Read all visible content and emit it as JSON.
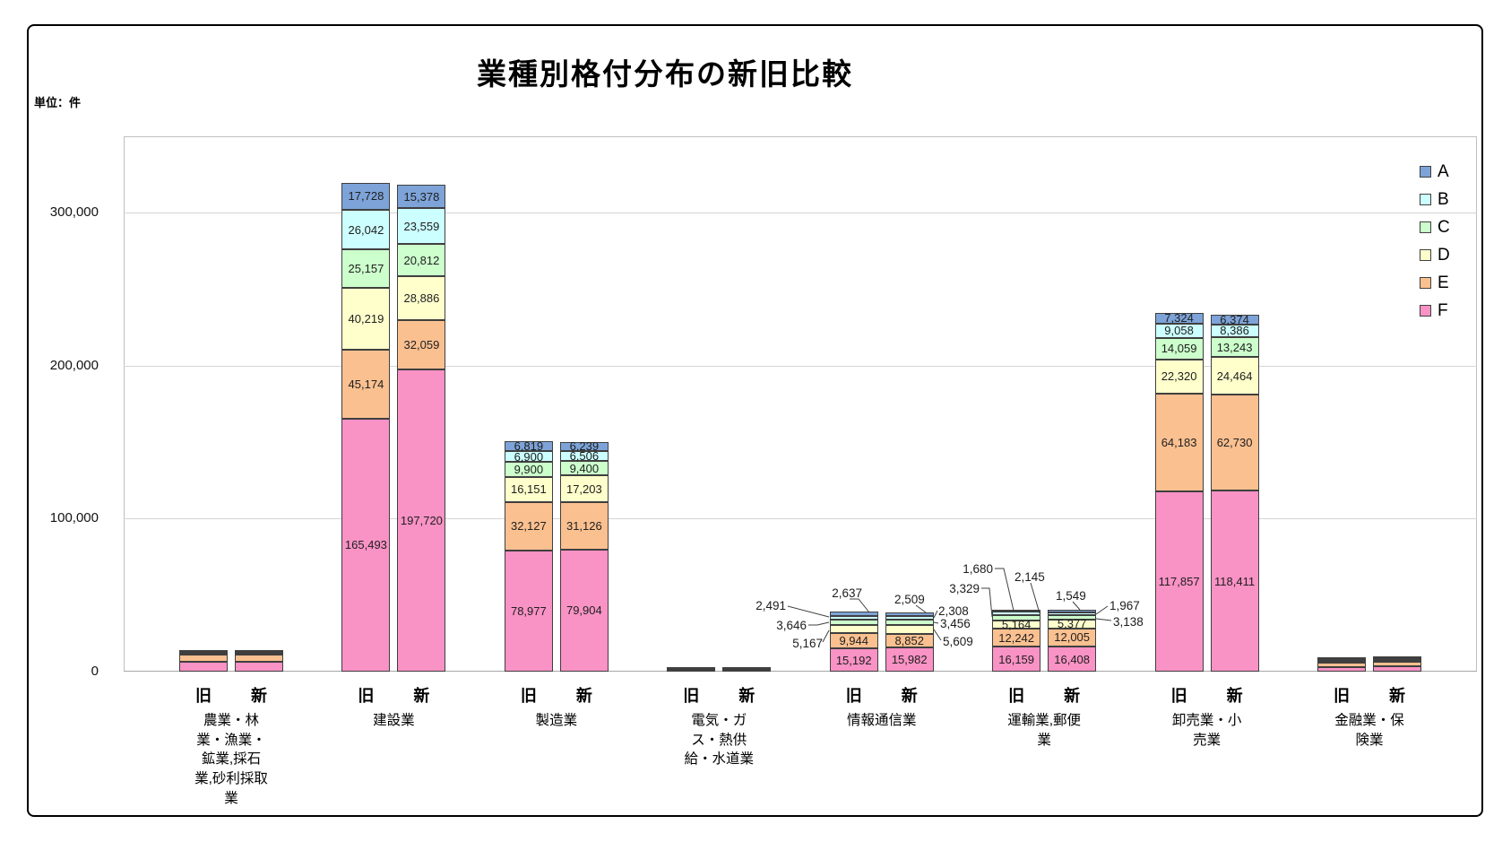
{
  "chart_data": {
    "type": "bar",
    "subtype": "stacked-column-pairs",
    "title": "業種別格付分布の新旧比較",
    "unit_label": "単位：件",
    "legend_position": "top-right-inside",
    "grid": true,
    "y_axis": {
      "ticks": [
        0,
        100000,
        200000,
        300000
      ],
      "tick_labels": [
        "0",
        "100,000",
        "200,000",
        "300,000"
      ],
      "max": 350000
    },
    "bar_labels": [
      "旧",
      "新"
    ],
    "series": [
      {
        "name": "A",
        "color": "#7DA3D8"
      },
      {
        "name": "B",
        "color": "#CCFFFF"
      },
      {
        "name": "C",
        "color": "#CCFFCC"
      },
      {
        "name": "D",
        "color": "#FFFFCC"
      },
      {
        "name": "E",
        "color": "#FAC090"
      },
      {
        "name": "F",
        "color": "#F992C5"
      }
    ],
    "groups": [
      {
        "category": "農業・林業・漁業・鉱業,採石業,砂利採取業",
        "values_estimated": true,
        "old": [
          500,
          600,
          800,
          1300,
          4500,
          6400
        ],
        "new": [
          450,
          550,
          750,
          1400,
          4600,
          6350
        ],
        "old_labels": [
          "",
          "",
          "",
          "",
          "",
          ""
        ],
        "new_labels": [
          "",
          "",
          "",
          "",
          "",
          ""
        ],
        "old_label_mode": [
          "none",
          "none",
          "none",
          "none",
          "none",
          "none"
        ],
        "new_label_mode": [
          "none",
          "none",
          "none",
          "none",
          "none",
          "none"
        ]
      },
      {
        "category": "建設業",
        "old": [
          17728,
          26042,
          25157,
          40219,
          45174,
          165493
        ],
        "new": [
          15378,
          23559,
          20812,
          28886,
          32059,
          197720
        ],
        "old_labels": [
          "17,728",
          "26,042",
          "25,157",
          "40,219",
          "45,174",
          "165,493"
        ],
        "new_labels": [
          "15,378",
          "23,559",
          "20,812",
          "28,886",
          "32,059",
          "197,720"
        ],
        "old_label_mode": [
          "in",
          "in",
          "in",
          "in",
          "in",
          "in"
        ],
        "new_label_mode": [
          "in",
          "in",
          "in",
          "in",
          "in",
          "in"
        ]
      },
      {
        "category": "製造業",
        "old": [
          6819,
          6900,
          9900,
          16151,
          32127,
          78977
        ],
        "new": [
          6239,
          6506,
          9400,
          17203,
          31126,
          79904
        ],
        "old_labels": [
          "6,819",
          "6,900",
          "9,900",
          "16,151",
          "32,127",
          "78,977"
        ],
        "new_labels": [
          "6,239",
          "6,506",
          "9,400",
          "17,203",
          "31,126",
          "79,904"
        ],
        "old_label_mode": [
          "in",
          "in",
          "in",
          "in",
          "in",
          "in"
        ],
        "new_label_mode": [
          "in",
          "in",
          "in",
          "in",
          "in",
          "in"
        ]
      },
      {
        "category": "電気・ガス・熱供給・水道業",
        "values_estimated": true,
        "old": [
          150,
          200,
          300,
          450,
          800,
          1000
        ],
        "new": [
          140,
          190,
          280,
          420,
          760,
          950
        ],
        "old_labels": [
          "",
          "",
          "",
          "",
          "",
          ""
        ],
        "new_labels": [
          "",
          "",
          "",
          "",
          "",
          ""
        ],
        "old_label_mode": [
          "none",
          "none",
          "none",
          "none",
          "none",
          "none"
        ],
        "new_label_mode": [
          "none",
          "none",
          "none",
          "none",
          "none",
          "none"
        ]
      },
      {
        "category": "情報通信業",
        "old": [
          2637,
          2491,
          3646,
          5167,
          9944,
          15192
        ],
        "new": [
          2509,
          2308,
          3456,
          5609,
          8852,
          15982
        ],
        "old_labels": [
          "2,637",
          "2,491",
          "3,646",
          "5,167",
          "9,944",
          "15,192"
        ],
        "new_labels": [
          "2,509",
          "2,308",
          "3,456",
          "5,609",
          "8,852",
          "15,982"
        ],
        "old_label_mode": [
          "callout",
          "callout",
          "callout",
          "callout",
          "in",
          "in"
        ],
        "new_label_mode": [
          "callout",
          "callout",
          "callout",
          "callout",
          "in",
          "in"
        ]
      },
      {
        "category": "運輸業,郵便業",
        "old": [
          1680,
          2145,
          3329,
          5164,
          12242,
          16159
        ],
        "new": [
          1549,
          1967,
          3138,
          5377,
          12005,
          16408
        ],
        "old_labels": [
          "1,680",
          "2,145",
          "3,329",
          "5,164",
          "12,242",
          "16,159"
        ],
        "new_labels": [
          "1,549",
          "1,967",
          "3,138",
          "5,377",
          "12,005",
          "16,408"
        ],
        "old_label_mode": [
          "callout",
          "callout",
          "callout",
          "in",
          "in",
          "in"
        ],
        "new_label_mode": [
          "callout",
          "callout",
          "callout",
          "in",
          "in",
          "in"
        ]
      },
      {
        "category": "卸売業・小売業",
        "old": [
          7324,
          9058,
          14059,
          22320,
          64183,
          117857
        ],
        "new": [
          6374,
          8386,
          13243,
          24464,
          62730,
          118411
        ],
        "old_labels": [
          "7,324",
          "9,058",
          "14,059",
          "22,320",
          "64,183",
          "117,857"
        ],
        "new_labels": [
          "6,374",
          "8,386",
          "13,243",
          "24,464",
          "62,730",
          "118,411"
        ],
        "old_label_mode": [
          "in",
          "in",
          "in",
          "in",
          "in",
          "in"
        ],
        "new_label_mode": [
          "in",
          "in",
          "in",
          "in",
          "in",
          "in"
        ]
      },
      {
        "category": "金融業・保険業",
        "values_estimated": true,
        "old": [
          700,
          800,
          1100,
          800,
          2900,
          3200
        ],
        "new": [
          650,
          750,
          1050,
          950,
          3100,
          3600
        ],
        "old_labels": [
          "",
          "",
          "",
          "",
          "",
          ""
        ],
        "new_labels": [
          "",
          "",
          "",
          "",
          "",
          ""
        ],
        "old_label_mode": [
          "none",
          "none",
          "none",
          "none",
          "none",
          "none"
        ],
        "new_label_mode": [
          "none",
          "none",
          "none",
          "none",
          "none",
          "none"
        ]
      }
    ]
  }
}
